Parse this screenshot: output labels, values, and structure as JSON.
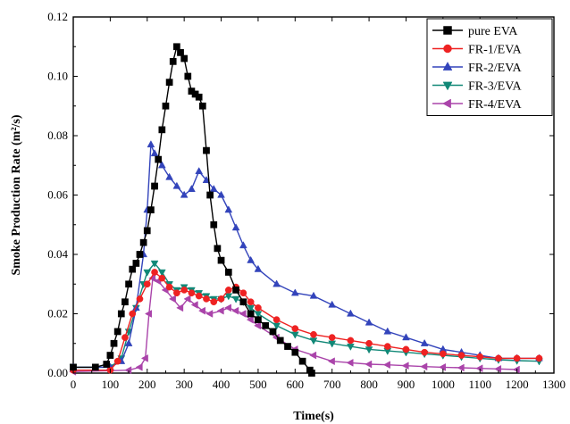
{
  "chart_data": {
    "type": "scatter",
    "title": "",
    "xlabel": "Time(s)",
    "ylabel": "Smoke Production Rate (m²/s)",
    "xlim": [
      0,
      1300
    ],
    "ylim": [
      0,
      0.12
    ],
    "xticks": [
      "0",
      "100",
      "200",
      "300",
      "400",
      "500",
      "600",
      "700",
      "800",
      "900",
      "1000",
      "1100",
      "1200",
      "1300"
    ],
    "yticks": [
      "0.00",
      "0.02",
      "0.04",
      "0.06",
      "0.08",
      "0.10",
      "0.12"
    ],
    "grid": false,
    "legend_position": "top-right",
    "series": [
      {
        "name": "pure EVA",
        "color": "#000000",
        "marker": "square",
        "points": [
          [
            0,
            0.002
          ],
          [
            60,
            0.002
          ],
          [
            90,
            0.003
          ],
          [
            100,
            0.006
          ],
          [
            110,
            0.01
          ],
          [
            120,
            0.014
          ],
          [
            130,
            0.02
          ],
          [
            140,
            0.024
          ],
          [
            150,
            0.03
          ],
          [
            160,
            0.035
          ],
          [
            170,
            0.037
          ],
          [
            180,
            0.04
          ],
          [
            190,
            0.044
          ],
          [
            200,
            0.048
          ],
          [
            210,
            0.055
          ],
          [
            220,
            0.063
          ],
          [
            230,
            0.072
          ],
          [
            240,
            0.082
          ],
          [
            250,
            0.09
          ],
          [
            260,
            0.098
          ],
          [
            270,
            0.105
          ],
          [
            280,
            0.11
          ],
          [
            290,
            0.108
          ],
          [
            300,
            0.106
          ],
          [
            310,
            0.1
          ],
          [
            320,
            0.095
          ],
          [
            330,
            0.094
          ],
          [
            340,
            0.093
          ],
          [
            350,
            0.09
          ],
          [
            360,
            0.075
          ],
          [
            370,
            0.06
          ],
          [
            380,
            0.05
          ],
          [
            390,
            0.042
          ],
          [
            400,
            0.038
          ],
          [
            420,
            0.034
          ],
          [
            440,
            0.028
          ],
          [
            460,
            0.024
          ],
          [
            480,
            0.02
          ],
          [
            500,
            0.018
          ],
          [
            520,
            0.016
          ],
          [
            540,
            0.014
          ],
          [
            560,
            0.011
          ],
          [
            580,
            0.009
          ],
          [
            600,
            0.007
          ],
          [
            620,
            0.004
          ],
          [
            640,
            0.001
          ],
          [
            645,
            0.0
          ]
        ]
      },
      {
        "name": "FR-1/EVA",
        "color": "#ee2222",
        "marker": "circle",
        "points": [
          [
            0,
            0.001
          ],
          [
            100,
            0.001
          ],
          [
            120,
            0.004
          ],
          [
            140,
            0.012
          ],
          [
            160,
            0.02
          ],
          [
            180,
            0.025
          ],
          [
            200,
            0.03
          ],
          [
            220,
            0.034
          ],
          [
            240,
            0.032
          ],
          [
            260,
            0.029
          ],
          [
            280,
            0.027
          ],
          [
            300,
            0.028
          ],
          [
            320,
            0.027
          ],
          [
            340,
            0.026
          ],
          [
            360,
            0.025
          ],
          [
            380,
            0.024
          ],
          [
            400,
            0.025
          ],
          [
            420,
            0.028
          ],
          [
            440,
            0.029
          ],
          [
            460,
            0.027
          ],
          [
            480,
            0.024
          ],
          [
            500,
            0.022
          ],
          [
            550,
            0.018
          ],
          [
            600,
            0.015
          ],
          [
            650,
            0.013
          ],
          [
            700,
            0.012
          ],
          [
            750,
            0.011
          ],
          [
            800,
            0.01
          ],
          [
            850,
            0.009
          ],
          [
            900,
            0.008
          ],
          [
            950,
            0.007
          ],
          [
            1000,
            0.0065
          ],
          [
            1050,
            0.006
          ],
          [
            1100,
            0.0055
          ],
          [
            1150,
            0.005
          ],
          [
            1200,
            0.005
          ],
          [
            1260,
            0.005
          ]
        ]
      },
      {
        "name": "FR-2/EVA",
        "color": "#3344bb",
        "marker": "triangle-up",
        "points": [
          [
            0,
            0.002
          ],
          [
            100,
            0.002
          ],
          [
            130,
            0.004
          ],
          [
            150,
            0.01
          ],
          [
            170,
            0.022
          ],
          [
            190,
            0.04
          ],
          [
            200,
            0.055
          ],
          [
            210,
            0.077
          ],
          [
            220,
            0.074
          ],
          [
            240,
            0.07
          ],
          [
            260,
            0.066
          ],
          [
            280,
            0.063
          ],
          [
            300,
            0.06
          ],
          [
            320,
            0.062
          ],
          [
            340,
            0.068
          ],
          [
            360,
            0.065
          ],
          [
            380,
            0.062
          ],
          [
            400,
            0.06
          ],
          [
            420,
            0.055
          ],
          [
            440,
            0.049
          ],
          [
            460,
            0.043
          ],
          [
            480,
            0.038
          ],
          [
            500,
            0.035
          ],
          [
            550,
            0.03
          ],
          [
            600,
            0.027
          ],
          [
            650,
            0.026
          ],
          [
            700,
            0.023
          ],
          [
            750,
            0.02
          ],
          [
            800,
            0.017
          ],
          [
            850,
            0.014
          ],
          [
            900,
            0.012
          ],
          [
            950,
            0.01
          ],
          [
            1000,
            0.008
          ],
          [
            1050,
            0.007
          ],
          [
            1100,
            0.006
          ],
          [
            1150,
            0.005
          ],
          [
            1200,
            0.005
          ],
          [
            1260,
            0.005
          ]
        ]
      },
      {
        "name": "FR-3/EVA",
        "color": "#118877",
        "marker": "triangle-down",
        "points": [
          [
            0,
            0.002
          ],
          [
            100,
            0.002
          ],
          [
            130,
            0.005
          ],
          [
            150,
            0.014
          ],
          [
            170,
            0.022
          ],
          [
            190,
            0.03
          ],
          [
            200,
            0.034
          ],
          [
            220,
            0.037
          ],
          [
            240,
            0.034
          ],
          [
            260,
            0.03
          ],
          [
            280,
            0.028
          ],
          [
            300,
            0.029
          ],
          [
            320,
            0.028
          ],
          [
            340,
            0.027
          ],
          [
            360,
            0.026
          ],
          [
            380,
            0.025
          ],
          [
            400,
            0.025
          ],
          [
            420,
            0.026
          ],
          [
            440,
            0.025
          ],
          [
            460,
            0.024
          ],
          [
            480,
            0.022
          ],
          [
            500,
            0.02
          ],
          [
            550,
            0.016
          ],
          [
            600,
            0.013
          ],
          [
            650,
            0.011
          ],
          [
            700,
            0.01
          ],
          [
            750,
            0.009
          ],
          [
            800,
            0.008
          ],
          [
            850,
            0.0075
          ],
          [
            900,
            0.007
          ],
          [
            950,
            0.0065
          ],
          [
            1000,
            0.006
          ],
          [
            1050,
            0.0055
          ],
          [
            1100,
            0.005
          ],
          [
            1150,
            0.0045
          ],
          [
            1200,
            0.0042
          ],
          [
            1260,
            0.004
          ]
        ]
      },
      {
        "name": "FR-4/EVA",
        "color": "#aa44aa",
        "marker": "triangle-left",
        "points": [
          [
            0,
            0.0005
          ],
          [
            150,
            0.001
          ],
          [
            180,
            0.002
          ],
          [
            195,
            0.005
          ],
          [
            205,
            0.02
          ],
          [
            215,
            0.032
          ],
          [
            230,
            0.031
          ],
          [
            250,
            0.028
          ],
          [
            270,
            0.025
          ],
          [
            290,
            0.022
          ],
          [
            310,
            0.025
          ],
          [
            330,
            0.023
          ],
          [
            350,
            0.021
          ],
          [
            370,
            0.02
          ],
          [
            400,
            0.021
          ],
          [
            420,
            0.022
          ],
          [
            440,
            0.021
          ],
          [
            460,
            0.02
          ],
          [
            480,
            0.018
          ],
          [
            500,
            0.016
          ],
          [
            550,
            0.012
          ],
          [
            600,
            0.008
          ],
          [
            650,
            0.006
          ],
          [
            700,
            0.004
          ],
          [
            750,
            0.0035
          ],
          [
            800,
            0.003
          ],
          [
            850,
            0.0028
          ],
          [
            900,
            0.0025
          ],
          [
            950,
            0.0022
          ],
          [
            1000,
            0.002
          ],
          [
            1050,
            0.0018
          ],
          [
            1100,
            0.0016
          ],
          [
            1150,
            0.0014
          ],
          [
            1200,
            0.0012
          ]
        ]
      }
    ]
  }
}
